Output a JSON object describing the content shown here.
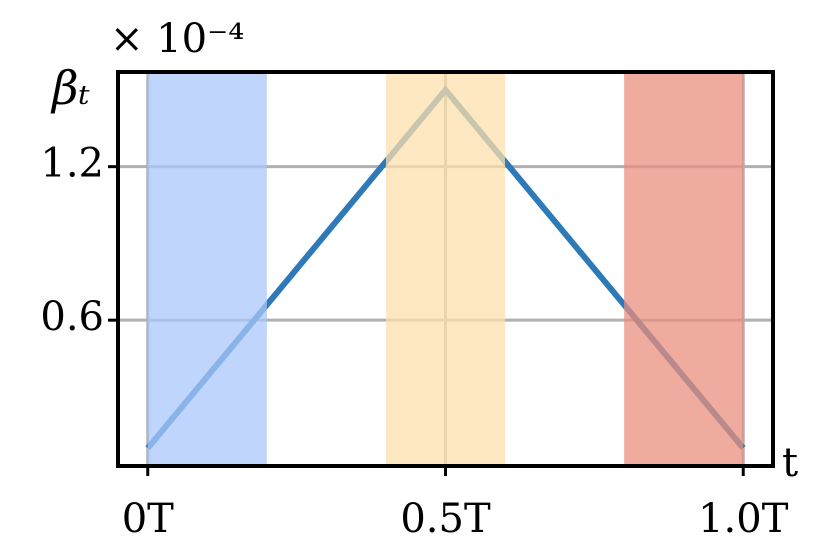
{
  "chart_data": {
    "type": "line",
    "y_label": "βₜ",
    "x_label": "t",
    "offset_text": "× 10⁻⁴",
    "x": [
      0,
      0.5,
      1.0
    ],
    "series": [
      {
        "values": [
          0.1,
          1.5,
          0.1
        ],
        "color": "#2e7ab8"
      }
    ],
    "spans": [
      {
        "x0": 0,
        "x1": 0.2,
        "color": "#a9c7fb"
      },
      {
        "x0": 0.4,
        "x1": 0.6,
        "color": "#fde0ae"
      },
      {
        "x0": 0.8,
        "x1": 1.0,
        "color": "#e98f7e"
      }
    ],
    "xlim": [
      -0.05,
      1.05
    ],
    "ylim": [
      0.03,
      1.57
    ],
    "xticks": [
      {
        "value": 0,
        "label": "0T"
      },
      {
        "value": 0.5,
        "label": "0.5T"
      },
      {
        "value": 1.0,
        "label": "1.0T"
      }
    ],
    "yticks": [
      0.6,
      1.2
    ],
    "grid": true
  }
}
